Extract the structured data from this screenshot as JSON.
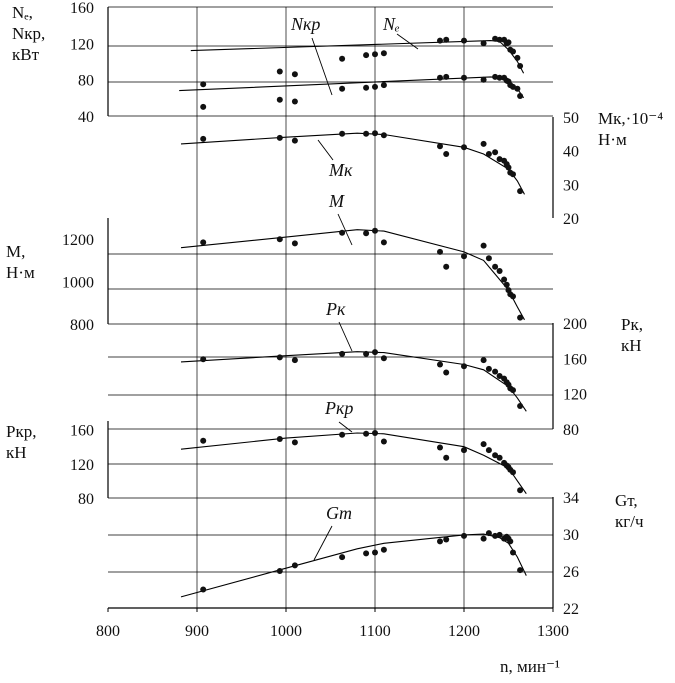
{
  "chart_data": {
    "type": "scatter",
    "x_axis": {
      "label": "n, мин⁻¹",
      "range": [
        800,
        1300
      ],
      "ticks": [
        800,
        900,
        1000,
        1100,
        1200,
        1300
      ]
    },
    "y_axes": [
      {
        "id": "N",
        "side": "left",
        "label_lines": [
          "Nₑ,",
          "Nкр,",
          "кВт"
        ],
        "range": [
          40,
          160
        ],
        "ticks": [
          "40",
          "80",
          "120",
          "160"
        ]
      },
      {
        "id": "Mk",
        "side": "right",
        "label_lines": [
          "Mк,·10⁻⁴",
          "Н·м"
        ],
        "range": [
          20,
          50
        ],
        "ticks": [
          "20",
          "30",
          "40",
          "50"
        ]
      },
      {
        "id": "M",
        "side": "left",
        "label_lines": [
          "M,",
          "Н·м"
        ],
        "range": [
          800,
          1300
        ],
        "ticks": [
          "800",
          "1000",
          "1200"
        ]
      },
      {
        "id": "Pk",
        "side": "right",
        "label_lines": [
          "Pк,",
          "кН"
        ],
        "range": [
          80,
          200
        ],
        "ticks": [
          "80",
          "120",
          "160",
          "200"
        ]
      },
      {
        "id": "Pkr",
        "side": "left",
        "label_lines": [
          "Pкр,",
          "кН"
        ],
        "range": [
          80,
          170
        ],
        "ticks": [
          "80",
          "120",
          "160"
        ]
      },
      {
        "id": "Gt",
        "side": "right",
        "label_lines": [
          "Gт,",
          "кг/ч"
        ],
        "range": [
          22,
          34
        ],
        "ticks": [
          "22",
          "26",
          "30",
          "34"
        ]
      }
    ],
    "series": [
      {
        "name": "Ne",
        "label": "Nₑ",
        "axis": "N",
        "line": [
          [
            893,
            112
          ],
          [
            1230,
            123
          ],
          [
            1240,
            122
          ],
          [
            1250,
            113
          ],
          [
            1260,
            100
          ],
          [
            1267,
            87
          ]
        ],
        "points": [
          [
            907,
            75
          ],
          [
            993,
            89
          ],
          [
            1010,
            86
          ],
          [
            1063,
            103
          ],
          [
            1090,
            107
          ],
          [
            1100,
            108
          ],
          [
            1110,
            109
          ],
          [
            1173,
            123
          ],
          [
            1180,
            124
          ],
          [
            1200,
            123
          ],
          [
            1222,
            120
          ],
          [
            1235,
            125
          ],
          [
            1240,
            124
          ],
          [
            1245,
            124
          ],
          [
            1248,
            120
          ],
          [
            1250,
            121
          ],
          [
            1252,
            113
          ],
          [
            1255,
            111
          ],
          [
            1260,
            104
          ],
          [
            1263,
            95
          ]
        ]
      },
      {
        "name": "Nkr",
        "label": "Nкр",
        "axis": "N",
        "line": [
          [
            880,
            68
          ],
          [
            1230,
            83
          ],
          [
            1240,
            82
          ],
          [
            1250,
            78
          ],
          [
            1260,
            70
          ],
          [
            1267,
            60
          ]
        ],
        "points": [
          [
            907,
            50
          ],
          [
            993,
            58
          ],
          [
            1010,
            56
          ],
          [
            1063,
            70
          ],
          [
            1090,
            71
          ],
          [
            1100,
            72
          ],
          [
            1110,
            74
          ],
          [
            1173,
            82
          ],
          [
            1180,
            83
          ],
          [
            1200,
            82
          ],
          [
            1222,
            80
          ],
          [
            1235,
            83
          ],
          [
            1240,
            82
          ],
          [
            1245,
            82
          ],
          [
            1248,
            79
          ],
          [
            1250,
            78
          ],
          [
            1252,
            74
          ],
          [
            1255,
            72
          ],
          [
            1260,
            70
          ],
          [
            1263,
            62
          ]
        ]
      },
      {
        "name": "Mk",
        "label": "Mк",
        "axis": "Mk",
        "line": [
          [
            882,
            42
          ],
          [
            1000,
            44
          ],
          [
            1080,
            45.2
          ],
          [
            1110,
            44.8
          ],
          [
            1200,
            41
          ],
          [
            1222,
            39
          ],
          [
            1250,
            34.5
          ],
          [
            1260,
            31
          ],
          [
            1268,
            27
          ]
        ],
        "points": [
          [
            907,
            43.5
          ],
          [
            993,
            43.8
          ],
          [
            1010,
            43
          ],
          [
            1063,
            45
          ],
          [
            1090,
            45
          ],
          [
            1100,
            45.2
          ],
          [
            1110,
            44.6
          ],
          [
            1173,
            41.3
          ],
          [
            1180,
            39
          ],
          [
            1200,
            41
          ],
          [
            1222,
            42
          ],
          [
            1228,
            39
          ],
          [
            1235,
            39.5
          ],
          [
            1240,
            37.5
          ],
          [
            1245,
            37
          ],
          [
            1248,
            36
          ],
          [
            1250,
            35
          ],
          [
            1252,
            33.5
          ],
          [
            1255,
            33
          ],
          [
            1263,
            28
          ]
        ]
      },
      {
        "name": "M",
        "label": "M",
        "axis": "M",
        "line": [
          [
            882,
            1160
          ],
          [
            1000,
            1210
          ],
          [
            1080,
            1245
          ],
          [
            1110,
            1238
          ],
          [
            1200,
            1140
          ],
          [
            1222,
            1100
          ],
          [
            1250,
            960
          ],
          [
            1260,
            880
          ],
          [
            1268,
            820
          ]
        ],
        "points": [
          [
            907,
            1185
          ],
          [
            993,
            1200
          ],
          [
            1010,
            1180
          ],
          [
            1063,
            1230
          ],
          [
            1090,
            1228
          ],
          [
            1100,
            1240
          ],
          [
            1110,
            1185
          ],
          [
            1173,
            1140
          ],
          [
            1180,
            1070
          ],
          [
            1200,
            1120
          ],
          [
            1222,
            1170
          ],
          [
            1228,
            1110
          ],
          [
            1235,
            1070
          ],
          [
            1240,
            1050
          ],
          [
            1245,
            1010
          ],
          [
            1248,
            985
          ],
          [
            1250,
            960
          ],
          [
            1252,
            940
          ],
          [
            1255,
            930
          ],
          [
            1263,
            830
          ]
        ]
      },
      {
        "name": "Pk",
        "label": "Pк",
        "axis": "Pk",
        "line": [
          [
            882,
            156
          ],
          [
            1000,
            163
          ],
          [
            1080,
            167.5
          ],
          [
            1110,
            166.5
          ],
          [
            1200,
            153
          ],
          [
            1222,
            147
          ],
          [
            1250,
            128
          ],
          [
            1260,
            115
          ],
          [
            1270,
            100
          ]
        ],
        "points": [
          [
            907,
            159
          ],
          [
            993,
            161
          ],
          [
            1010,
            158
          ],
          [
            1063,
            165
          ],
          [
            1090,
            165
          ],
          [
            1100,
            167
          ],
          [
            1110,
            160
          ],
          [
            1173,
            153
          ],
          [
            1180,
            144
          ],
          [
            1200,
            151
          ],
          [
            1222,
            158
          ],
          [
            1228,
            148
          ],
          [
            1235,
            145
          ],
          [
            1240,
            140
          ],
          [
            1245,
            137
          ],
          [
            1248,
            133
          ],
          [
            1250,
            130
          ],
          [
            1252,
            126
          ],
          [
            1255,
            124
          ],
          [
            1263,
            106
          ]
        ]
      },
      {
        "name": "Pkr",
        "label": "Pкр",
        "axis": "Pkr",
        "line": [
          [
            882,
            137
          ],
          [
            1000,
            150
          ],
          [
            1080,
            156
          ],
          [
            1110,
            155
          ],
          [
            1200,
            140
          ],
          [
            1222,
            130
          ],
          [
            1250,
            115
          ],
          [
            1260,
            100
          ],
          [
            1270,
            85
          ]
        ],
        "points": [
          [
            907,
            147
          ],
          [
            993,
            149
          ],
          [
            1010,
            145
          ],
          [
            1063,
            154
          ],
          [
            1090,
            155
          ],
          [
            1100,
            156
          ],
          [
            1110,
            146
          ],
          [
            1173,
            139
          ],
          [
            1180,
            127
          ],
          [
            1200,
            136
          ],
          [
            1222,
            143
          ],
          [
            1228,
            136
          ],
          [
            1235,
            130
          ],
          [
            1240,
            127
          ],
          [
            1245,
            121
          ],
          [
            1248,
            118
          ],
          [
            1250,
            116
          ],
          [
            1252,
            113
          ],
          [
            1255,
            110
          ],
          [
            1263,
            89
          ]
        ]
      },
      {
        "name": "Gt",
        "label": "Gт",
        "axis": "Gt",
        "line": [
          [
            882,
            23.2
          ],
          [
            1000,
            26.3
          ],
          [
            1080,
            28.4
          ],
          [
            1110,
            29
          ],
          [
            1170,
            29.6
          ],
          [
            1200,
            29.9
          ],
          [
            1222,
            30
          ],
          [
            1240,
            29.6
          ],
          [
            1250,
            29
          ],
          [
            1260,
            27.5
          ],
          [
            1270,
            25.5
          ]
        ],
        "points": [
          [
            907,
            24
          ],
          [
            993,
            26
          ],
          [
            1010,
            26.6
          ],
          [
            1063,
            27.5
          ],
          [
            1090,
            27.9
          ],
          [
            1100,
            28
          ],
          [
            1110,
            28.3
          ],
          [
            1173,
            29.2
          ],
          [
            1180,
            29.4
          ],
          [
            1200,
            29.8
          ],
          [
            1222,
            29.5
          ],
          [
            1228,
            30.1
          ],
          [
            1235,
            29.8
          ],
          [
            1240,
            29.9
          ],
          [
            1245,
            29.5
          ],
          [
            1248,
            29.7
          ],
          [
            1250,
            29.5
          ],
          [
            1252,
            29.2
          ],
          [
            1255,
            28
          ],
          [
            1263,
            26.1
          ]
        ]
      }
    ]
  }
}
